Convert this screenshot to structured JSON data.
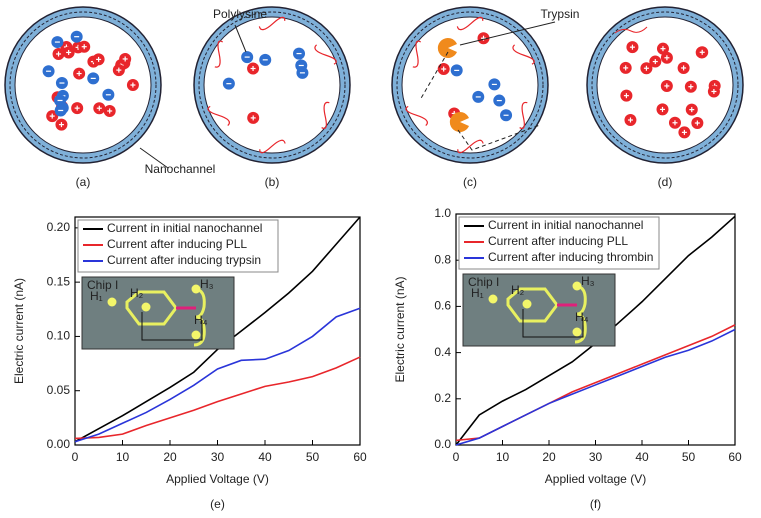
{
  "diagram": {
    "labels": [
      "Polylysine",
      "Trypsin",
      "Nanochannel"
    ],
    "panels": [
      "(a)",
      "(b)",
      "(c)",
      "(d)"
    ]
  },
  "inset": {
    "title": "Chip I",
    "labels": [
      "H₁",
      "H₂",
      "H₃",
      "H₄"
    ]
  },
  "chart_data": [
    {
      "type": "line",
      "caption": "(e)",
      "xlabel": "Applied Voltage (V)",
      "ylabel": "Electric current (nA)",
      "x": [
        0,
        5,
        10,
        15,
        20,
        25,
        30,
        35,
        40,
        45,
        50,
        55,
        60
      ],
      "series": [
        {
          "name": "Current in initial nanochannel",
          "color": "#000000",
          "values": [
            0.003,
            0.015,
            0.027,
            0.04,
            0.053,
            0.067,
            0.088,
            0.105,
            0.122,
            0.14,
            0.16,
            0.185,
            0.21
          ]
        },
        {
          "name": "Current after inducing PLL",
          "color": "#e8262b",
          "values": [
            0.006,
            0.007,
            0.01,
            0.018,
            0.025,
            0.032,
            0.04,
            0.047,
            0.054,
            0.058,
            0.063,
            0.071,
            0.081
          ]
        },
        {
          "name": "Current after inducing trypsin",
          "color": "#2a35d9",
          "values": [
            0.003,
            0.01,
            0.02,
            0.03,
            0.042,
            0.055,
            0.07,
            0.078,
            0.079,
            0.087,
            0.1,
            0.118,
            0.126
          ]
        }
      ],
      "xlim": [
        0,
        60
      ],
      "xticks": [
        0,
        10,
        20,
        30,
        40,
        50,
        60
      ],
      "ylim": [
        0,
        0.21
      ],
      "yticks": [
        {
          "value": 0,
          "label": "0.00"
        },
        {
          "value": 0.05,
          "label": "0.05"
        },
        {
          "value": 0.1,
          "label": "0.10"
        },
        {
          "value": 0.15,
          "label": "0.15"
        },
        {
          "value": 0.2,
          "label": "0.20"
        }
      ]
    },
    {
      "type": "line",
      "caption": "(f)",
      "xlabel": "Applied voltage (V)",
      "ylabel": "Electric current (nA)",
      "x": [
        0,
        5,
        10,
        15,
        20,
        25,
        30,
        35,
        40,
        45,
        50,
        55,
        60
      ],
      "series": [
        {
          "name": "Current in initial nanochannel",
          "color": "#000000",
          "values": [
            0,
            0.13,
            0.19,
            0.24,
            0.3,
            0.36,
            0.44,
            0.53,
            0.62,
            0.72,
            0.82,
            0.9,
            0.99
          ]
        },
        {
          "name": "Current after inducing PLL",
          "color": "#e8262b",
          "values": [
            0.02,
            0.03,
            0.08,
            0.13,
            0.18,
            0.23,
            0.27,
            0.31,
            0.35,
            0.39,
            0.43,
            0.47,
            0.52
          ]
        },
        {
          "name": "Current after inducing thrombin",
          "color": "#2a35d9",
          "values": [
            0,
            0.03,
            0.08,
            0.13,
            0.18,
            0.22,
            0.26,
            0.3,
            0.34,
            0.38,
            0.41,
            0.45,
            0.5
          ]
        }
      ],
      "xlim": [
        0,
        60
      ],
      "xticks": [
        0,
        10,
        20,
        30,
        40,
        50,
        60
      ],
      "ylim": [
        0,
        1
      ],
      "yticks": [
        {
          "value": 0,
          "label": "0.0"
        },
        {
          "value": 0.2,
          "label": "0.2"
        },
        {
          "value": 0.4,
          "label": "0.4"
        },
        {
          "value": 0.6,
          "label": "0.6"
        },
        {
          "value": 0.8,
          "label": "0.8"
        },
        {
          "value": 1,
          "label": "1.0"
        }
      ]
    }
  ]
}
